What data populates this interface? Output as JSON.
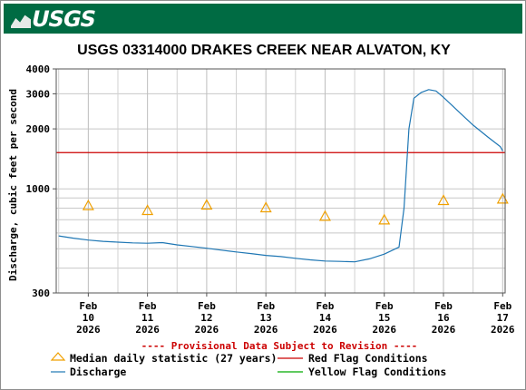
{
  "header": {
    "logo_text": "USGS"
  },
  "chart_data": {
    "type": "line",
    "title": "USGS 03314000 DRAKES CREEK NEAR ALVATON, KY",
    "ylabel": "Discharge, cubic feet per second",
    "xlabel": "",
    "y_scale": "log",
    "ylim": [
      300,
      4000
    ],
    "xlim": [
      "2026-02-09T23:00",
      "2026-02-17T13:00"
    ],
    "y_ticks": [
      {
        "value": 4000,
        "label": "4000"
      },
      {
        "value": 3000,
        "label": "3000"
      },
      {
        "value": 2000,
        "label": "2000"
      },
      {
        "value": 1000,
        "label": "1000"
      },
      {
        "value": 300,
        "label": "300"
      }
    ],
    "x_ticks": [
      {
        "month": "Feb",
        "day": "10",
        "year": "2026",
        "date": "2026-02-10T12:00"
      },
      {
        "month": "Feb",
        "day": "11",
        "year": "2026",
        "date": "2026-02-11T12:00"
      },
      {
        "month": "Feb",
        "day": "12",
        "year": "2026",
        "date": "2026-02-12T12:00"
      },
      {
        "month": "Feb",
        "day": "13",
        "year": "2026",
        "date": "2026-02-13T12:00"
      },
      {
        "month": "Feb",
        "day": "14",
        "year": "2026",
        "date": "2026-02-14T12:00"
      },
      {
        "month": "Feb",
        "day": "15",
        "year": "2026",
        "date": "2026-02-15T12:00"
      },
      {
        "month": "Feb",
        "day": "16",
        "year": "2026",
        "date": "2026-02-16T12:00"
      },
      {
        "month": "Feb",
        "day": "17",
        "year": "2026",
        "date": "2026-02-17T12:00"
      }
    ],
    "grid": true,
    "series": [
      {
        "name": "Discharge",
        "color": "#1f77b4",
        "points": [
          [
            "2026-02-10T00:00",
            580
          ],
          [
            "2026-02-10T06:00",
            565
          ],
          [
            "2026-02-10T12:00",
            553
          ],
          [
            "2026-02-10T18:00",
            545
          ],
          [
            "2026-02-11T00:00",
            540
          ],
          [
            "2026-02-11T06:00",
            535
          ],
          [
            "2026-02-11T12:00",
            533
          ],
          [
            "2026-02-11T18:00",
            537
          ],
          [
            "2026-02-12T00:00",
            523
          ],
          [
            "2026-02-12T06:00",
            513
          ],
          [
            "2026-02-12T12:00",
            503
          ],
          [
            "2026-02-12T18:00",
            492
          ],
          [
            "2026-02-13T00:00",
            482
          ],
          [
            "2026-02-13T06:00",
            473
          ],
          [
            "2026-02-13T12:00",
            463
          ],
          [
            "2026-02-13T18:00",
            457
          ],
          [
            "2026-02-14T00:00",
            448
          ],
          [
            "2026-02-14T06:00",
            440
          ],
          [
            "2026-02-14T12:00",
            434
          ],
          [
            "2026-02-14T18:00",
            432
          ],
          [
            "2026-02-15T00:00",
            430
          ],
          [
            "2026-02-15T06:00",
            445
          ],
          [
            "2026-02-15T12:00",
            470
          ],
          [
            "2026-02-15T18:00",
            510
          ],
          [
            "2026-02-15T20:00",
            800
          ],
          [
            "2026-02-15T22:00",
            2000
          ],
          [
            "2026-02-16T00:00",
            2850
          ],
          [
            "2026-02-16T03:00",
            3050
          ],
          [
            "2026-02-16T06:00",
            3150
          ],
          [
            "2026-02-16T09:00",
            3100
          ],
          [
            "2026-02-16T12:00",
            2880
          ],
          [
            "2026-02-16T18:00",
            2450
          ],
          [
            "2026-02-17T00:00",
            2090
          ],
          [
            "2026-02-17T06:00",
            1820
          ],
          [
            "2026-02-17T11:00",
            1630
          ],
          [
            "2026-02-17T12:00",
            1550
          ]
        ]
      },
      {
        "name": "Median daily statistic (27 years)",
        "color": "#f0a000",
        "marker": "triangle",
        "points": [
          [
            "2026-02-10T12:00",
            820
          ],
          [
            "2026-02-11T12:00",
            775
          ],
          [
            "2026-02-12T12:00",
            825
          ],
          [
            "2026-02-13T12:00",
            800
          ],
          [
            "2026-02-14T12:00",
            725
          ],
          [
            "2026-02-15T12:00",
            695
          ],
          [
            "2026-02-16T12:00",
            870
          ],
          [
            "2026-02-17T12:00",
            885
          ]
        ]
      }
    ],
    "reference_lines": [
      {
        "name": "Red Flag Conditions",
        "value": 1520,
        "color": "#cc0000"
      },
      {
        "name": "Yellow Flag Conditions",
        "color": "#00aa00"
      }
    ],
    "annotations": [
      {
        "text": "---- Provisional Data Subject to Revision ----",
        "color": "#cc0000"
      }
    ],
    "legend": {
      "placement": "bottom",
      "items": [
        {
          "label": "Median daily statistic (27 years)",
          "color": "#f0a000",
          "kind": "triangle"
        },
        {
          "label": "Red Flag Conditions",
          "color": "#cc0000",
          "kind": "line"
        },
        {
          "label": "Discharge",
          "color": "#1f77b4",
          "kind": "line"
        },
        {
          "label": "Yellow Flag Conditions",
          "color": "#00aa00",
          "kind": "line"
        }
      ]
    }
  }
}
